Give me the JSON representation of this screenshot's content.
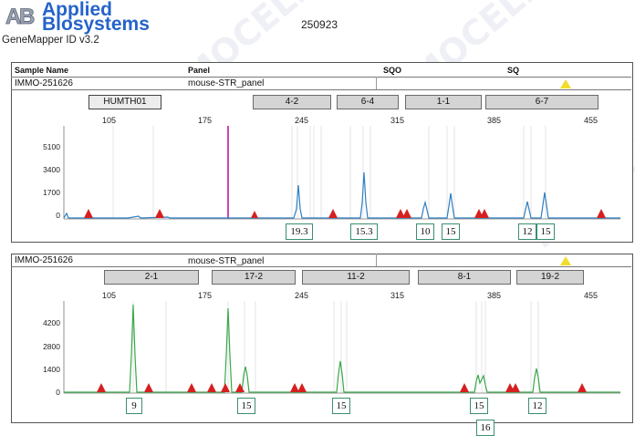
{
  "header": {
    "logo_mark": "AB",
    "brand_line1": "Applied",
    "brand_line2": "Biosystems",
    "software": "GeneMapper ID v3.2",
    "run_id": "250923"
  },
  "watermark_text": "IMMOCELL",
  "table_header": {
    "sample_name": "Sample Name",
    "panel": "Panel",
    "sqo": "SQO",
    "sq": "SQ"
  },
  "panel1": {
    "sample": "IMMO-251626",
    "panel": "mouse-STR_panel",
    "markers": [
      "HUMTH01",
      "4-2",
      "6-4",
      "1-1",
      "6-7"
    ],
    "x_ticks": [
      "105",
      "175",
      "245",
      "315",
      "385",
      "455"
    ],
    "y_ticks": [
      "5100",
      "3400",
      "1700",
      "0"
    ],
    "alleles": [
      "19.3",
      "15.3",
      "10",
      "15",
      "12",
      "15"
    ],
    "trace_color": "#2f7fc1"
  },
  "panel2": {
    "sample": "IMMO-251626",
    "panel": "mouse-STR_panel",
    "markers": [
      "2-1",
      "17-2",
      "11-2",
      "8-1",
      "19-2"
    ],
    "x_ticks": [
      "105",
      "175",
      "245",
      "315",
      "385",
      "455"
    ],
    "y_ticks": [
      "4200",
      "2800",
      "1400",
      "0"
    ],
    "alleles": [
      "9",
      "15",
      "15",
      "15",
      "12"
    ],
    "allele_extra": "16",
    "trace_color": "#3aa84a"
  },
  "colors": {
    "brand": "#2563c9",
    "peak_marker": "#d62020",
    "warning": "#f2dd2a",
    "allele_border": "#3a8f70",
    "cursor_line": "#c0189a"
  }
}
